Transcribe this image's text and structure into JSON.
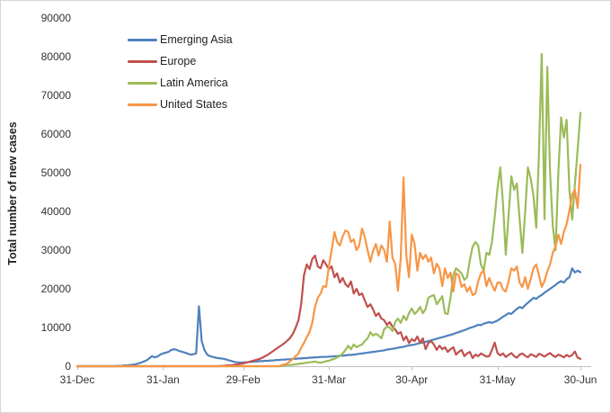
{
  "figure": {
    "background": "#ffffff",
    "border_color": "#d6d6d6",
    "axis_color": "#bfbfbf",
    "text_color": "#333333"
  },
  "chart_data": {
    "type": "line",
    "title": "",
    "xlabel": "",
    "ylabel": "Total number of new cases",
    "ylim": [
      0,
      90000
    ],
    "y_tick_step": 10000,
    "y_tick_labels": [
      "0",
      "10000",
      "20000",
      "30000",
      "40000",
      "50000",
      "60000",
      "70000",
      "80000",
      "90000"
    ],
    "x_ticks": [
      {
        "label": "31-Dec",
        "day": 0
      },
      {
        "label": "31-Jan",
        "day": 31
      },
      {
        "label": "29-Feb",
        "day": 60
      },
      {
        "label": "31-Mar",
        "day": 91
      },
      {
        "label": "30-Apr",
        "day": 121
      },
      {
        "label": "31-May",
        "day": 152
      },
      {
        "label": "30-Jun",
        "day": 182
      }
    ],
    "x_range_days": [
      0,
      182
    ],
    "grid": false,
    "legend_position": "upper-left-inside",
    "series": [
      {
        "name": "Emerging Asia",
        "color": "#4F81BD",
        "values": [
          0,
          0,
          0,
          0,
          0,
          0,
          0,
          0,
          0,
          0,
          0,
          0,
          0,
          0,
          100,
          100,
          100,
          200,
          200,
          300,
          400,
          500,
          700,
          900,
          1200,
          1500,
          2000,
          2600,
          2300,
          2500,
          3000,
          3300,
          3500,
          3700,
          4200,
          4400,
          4200,
          3900,
          3700,
          3500,
          3200,
          3000,
          3100,
          3300,
          15500,
          6500,
          4200,
          3000,
          2600,
          2400,
          2200,
          2100,
          2000,
          1900,
          1700,
          1500,
          1300,
          1100,
          1000,
          900,
          1000,
          1000,
          1100,
          1100,
          1200,
          1200,
          1300,
          1300,
          1400,
          1400,
          1500,
          1500,
          1600,
          1600,
          1700,
          1700,
          1800,
          1800,
          1900,
          1900,
          2000,
          2000,
          2100,
          2100,
          2200,
          2200,
          2300,
          2300,
          2400,
          2400,
          2400,
          2500,
          2500,
          2600,
          2600,
          2700,
          2700,
          2800,
          2900,
          2900,
          3000,
          3100,
          3200,
          3300,
          3400,
          3500,
          3600,
          3700,
          3800,
          3900,
          4000,
          4100,
          4300,
          4400,
          4500,
          4600,
          4800,
          4900,
          5000,
          5200,
          5400,
          5500,
          5600,
          5800,
          6000,
          6100,
          6300,
          6500,
          6700,
          6900,
          7100,
          7300,
          7500,
          7700,
          7900,
          8100,
          8300,
          8600,
          8800,
          9100,
          9300,
          9600,
          9900,
          10100,
          10400,
          10700,
          10600,
          11000,
          11200,
          11400,
          11200,
          11500,
          11800,
          12300,
          12800,
          13200,
          13700,
          13500,
          14200,
          14800,
          15300,
          15000,
          15800,
          16400,
          17000,
          17700,
          17400,
          18000,
          18400,
          19000,
          19500,
          20000,
          20500,
          21000,
          21600,
          22000,
          21600,
          22500,
          23000,
          25300,
          24200,
          24700,
          24300
        ]
      },
      {
        "name": "Europe",
        "color": "#C0504D",
        "values": [
          0,
          0,
          0,
          0,
          0,
          0,
          0,
          0,
          0,
          0,
          0,
          0,
          0,
          0,
          0,
          0,
          0,
          0,
          0,
          0,
          0,
          0,
          0,
          0,
          0,
          0,
          0,
          0,
          0,
          0,
          0,
          0,
          0,
          0,
          0,
          0,
          0,
          0,
          0,
          0,
          0,
          0,
          0,
          0,
          0,
          0,
          0,
          0,
          0,
          0,
          0,
          0,
          100,
          100,
          200,
          200,
          300,
          400,
          500,
          600,
          700,
          900,
          1100,
          1300,
          1500,
          1700,
          1900,
          2200,
          2600,
          3000,
          3500,
          4000,
          4500,
          5000,
          5500,
          6000,
          6600,
          7300,
          8400,
          10000,
          11900,
          16000,
          23500,
          26300,
          25100,
          27700,
          28600,
          25800,
          25300,
          27400,
          26300,
          25100,
          25800,
          23000,
          24000,
          21600,
          22800,
          21200,
          20500,
          21900,
          18800,
          20000,
          18400,
          18800,
          17000,
          15300,
          16000,
          14700,
          13000,
          13700,
          12300,
          11900,
          10700,
          11400,
          10200,
          9500,
          8400,
          8800,
          6700,
          7700,
          6000,
          7000,
          6500,
          7700,
          6000,
          7200,
          4400,
          6000,
          6500,
          5600,
          4200,
          5300,
          4400,
          4900,
          3700,
          4400,
          4900,
          3000,
          3700,
          4200,
          2600,
          3300,
          3700,
          2100,
          3000,
          2600,
          3300,
          2900,
          2500,
          2600,
          4200,
          6100,
          3400,
          2800,
          3300,
          2400,
          2900,
          3400,
          2600,
          2200,
          3000,
          3300,
          2700,
          2300,
          3100,
          2800,
          2400,
          3200,
          2900,
          2500,
          3000,
          3400,
          2800,
          2400,
          3000,
          2700,
          2300,
          2900,
          2500,
          2900,
          3800,
          2200,
          1900
        ]
      },
      {
        "name": "Latin America",
        "color": "#9BBB59",
        "values": [
          0,
          0,
          0,
          0,
          0,
          0,
          0,
          0,
          0,
          0,
          0,
          0,
          0,
          0,
          0,
          0,
          0,
          0,
          0,
          0,
          0,
          0,
          0,
          0,
          0,
          0,
          0,
          0,
          0,
          0,
          0,
          0,
          0,
          0,
          0,
          0,
          0,
          0,
          0,
          0,
          0,
          0,
          0,
          0,
          0,
          0,
          0,
          0,
          0,
          0,
          0,
          0,
          0,
          0,
          0,
          0,
          0,
          0,
          0,
          0,
          0,
          0,
          0,
          0,
          0,
          0,
          0,
          0,
          0,
          0,
          0,
          0,
          0,
          0,
          0,
          200,
          300,
          300,
          400,
          500,
          600,
          700,
          800,
          900,
          1000,
          1100,
          1200,
          1000,
          900,
          1100,
          1300,
          1400,
          1700,
          1900,
          2300,
          2600,
          3300,
          4200,
          5300,
          4400,
          5600,
          4900,
          5300,
          5600,
          6500,
          7200,
          8800,
          7900,
          8400,
          7900,
          7200,
          9500,
          10200,
          10000,
          9100,
          11400,
          12300,
          11200,
          13000,
          11900,
          13700,
          14900,
          13500,
          14200,
          15300,
          13700,
          14800,
          17700,
          18100,
          18400,
          16000,
          17000,
          18100,
          13700,
          13500,
          17700,
          23500,
          25300,
          24700,
          24000,
          22300,
          23000,
          27400,
          30900,
          32100,
          31200,
          26300,
          24700,
          29300,
          28800,
          32100,
          38600,
          46000,
          51400,
          42000,
          28800,
          39000,
          49100,
          45600,
          47200,
          38000,
          29300,
          40000,
          51400,
          48600,
          44000,
          35800,
          55000,
          80700,
          38000,
          77400,
          50000,
          36300,
          30000,
          50000,
          64300,
          59100,
          63700,
          45600,
          37900,
          47000,
          56000,
          65500
        ]
      },
      {
        "name": "United States",
        "color": "#F79646",
        "values": [
          0,
          0,
          0,
          0,
          0,
          0,
          0,
          0,
          0,
          0,
          0,
          0,
          0,
          0,
          0,
          0,
          0,
          0,
          0,
          0,
          0,
          0,
          0,
          0,
          0,
          0,
          0,
          0,
          0,
          0,
          0,
          0,
          0,
          0,
          0,
          0,
          0,
          0,
          0,
          0,
          0,
          0,
          0,
          0,
          0,
          0,
          0,
          0,
          0,
          0,
          0,
          0,
          0,
          0,
          0,
          0,
          0,
          0,
          0,
          0,
          0,
          0,
          0,
          0,
          0,
          0,
          0,
          0,
          0,
          0,
          0,
          0,
          0,
          0,
          300,
          500,
          700,
          1300,
          1900,
          2600,
          3300,
          4800,
          6000,
          7500,
          8800,
          11200,
          15300,
          17700,
          18800,
          20700,
          20500,
          25800,
          30000,
          34700,
          32100,
          31200,
          33500,
          35100,
          34700,
          32100,
          32800,
          30000,
          31200,
          35600,
          33300,
          30000,
          27000,
          29800,
          31600,
          28600,
          31200,
          30000,
          27000,
          37400,
          28000,
          26500,
          19500,
          28000,
          48800,
          28600,
          23000,
          34000,
          31600,
          24700,
          29300,
          27700,
          28800,
          27000,
          28100,
          24000,
          26500,
          25300,
          20700,
          25300,
          22800,
          24200,
          19300,
          24000,
          23500,
          20500,
          21200,
          19300,
          20500,
          18400,
          18800,
          21900,
          24000,
          24700,
          20700,
          22800,
          21000,
          19500,
          21600,
          21600,
          19800,
          19300,
          22000,
          25300,
          24700,
          25800,
          21600,
          20500,
          23000,
          20000,
          22500,
          25300,
          26300,
          23500,
          20500,
          22000,
          24500,
          26300,
          29300,
          31000,
          34000,
          31600,
          34700,
          36700,
          40200,
          44400,
          45600,
          40900,
          52100
        ]
      }
    ]
  }
}
